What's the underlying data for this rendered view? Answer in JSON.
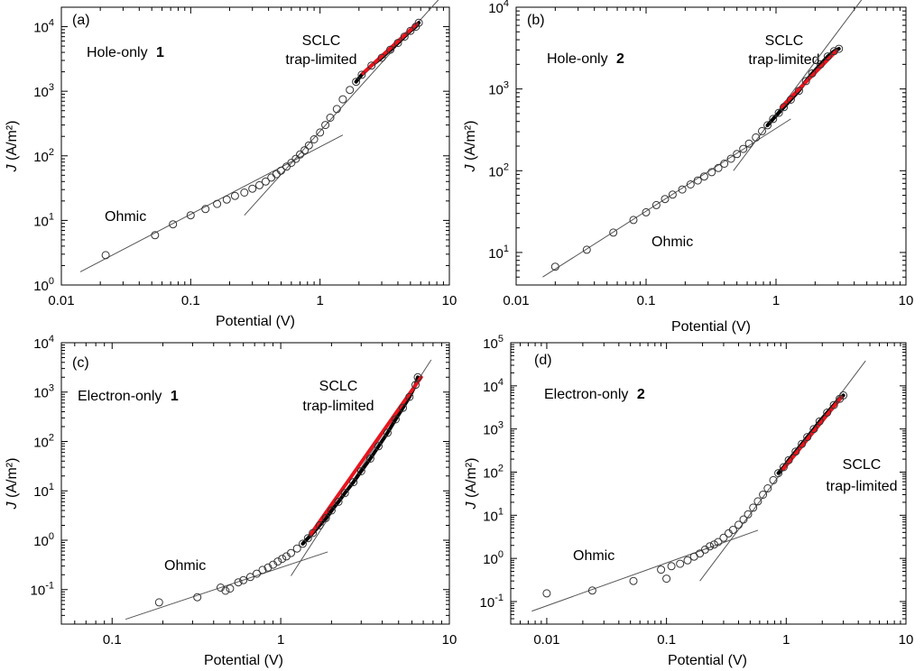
{
  "chart_data": [
    {
      "panel": "(a)",
      "type": "scatter",
      "xlabel_var": "",
      "xlabel": "Potential (V)",
      "ylabel_var": "J",
      "ylabel": " (A/m²)",
      "xscale": "log",
      "yscale": "log",
      "xlim": [
        0.01,
        10
      ],
      "ylim": [
        1,
        20000
      ],
      "xticks": [
        {
          "v": 0.01,
          "t": "0.01"
        },
        {
          "v": 0.1,
          "t": "0.1"
        },
        {
          "v": 1,
          "t": "1"
        },
        {
          "v": 10,
          "t": "10"
        }
      ],
      "yticks": [
        {
          "v": 1,
          "b": "10",
          "e": "0"
        },
        {
          "v": 10,
          "b": "10",
          "e": "1"
        },
        {
          "v": 100,
          "b": "10",
          "e": "2"
        },
        {
          "v": 1000,
          "b": "10",
          "e": "3"
        },
        {
          "v": 10000,
          "b": "10",
          "e": "4"
        }
      ],
      "sample_prefix": "Hole-only ",
      "sample_id": "1",
      "region_label_1": "SCLC",
      "region_label_2": "trap-limited",
      "ohmic_label": "Ohmic",
      "points": [
        [
          0.022,
          2.9
        ],
        [
          0.053,
          5.9
        ],
        [
          0.073,
          8.7
        ],
        [
          0.1,
          12
        ],
        [
          0.13,
          15
        ],
        [
          0.16,
          18
        ],
        [
          0.19,
          21
        ],
        [
          0.22,
          24
        ],
        [
          0.26,
          27
        ],
        [
          0.3,
          31
        ],
        [
          0.34,
          35
        ],
        [
          0.38,
          40
        ],
        [
          0.42,
          46
        ],
        [
          0.46,
          52
        ],
        [
          0.5,
          59
        ],
        [
          0.55,
          68
        ],
        [
          0.6,
          78
        ],
        [
          0.65,
          90
        ],
        [
          0.7,
          105
        ],
        [
          0.76,
          122
        ],
        [
          0.82,
          145
        ],
        [
          0.9,
          180
        ],
        [
          1.0,
          230
        ],
        [
          1.1,
          300
        ],
        [
          1.2,
          390
        ],
        [
          1.35,
          530
        ],
        [
          1.5,
          750
        ],
        [
          1.7,
          1050
        ],
        [
          1.9,
          1400
        ],
        [
          2.1,
          1800
        ],
        [
          2.5,
          2500
        ],
        [
          3.0,
          3300
        ],
        [
          3.5,
          4400
        ],
        [
          4.0,
          5600
        ],
        [
          4.5,
          7000
        ],
        [
          5.0,
          8600
        ],
        [
          5.5,
          10000
        ],
        [
          5.8,
          11500
        ]
      ],
      "ohmic_fit": [
        [
          0.014,
          1.6
        ],
        [
          1.5,
          210
        ]
      ],
      "sclc_fit": [
        [
          0.26,
          12
        ],
        [
          8.5,
          28000
        ]
      ],
      "red_fit": [
        [
          2.15,
          1900
        ],
        [
          5.6,
          11000
        ]
      ],
      "colors": {
        "markers": "#333333",
        "fit_lines": "#555555",
        "dense_fit": "#000000",
        "red_fit": "#e8141d"
      }
    },
    {
      "panel": "(b)",
      "type": "scatter",
      "xlabel_var": "",
      "xlabel": "Potential (V)",
      "ylabel_var": "J",
      "ylabel": " (A/m²)",
      "xscale": "log",
      "yscale": "log",
      "xlim": [
        0.01,
        10
      ],
      "ylim": [
        4,
        10000
      ],
      "xticks": [
        {
          "v": 0.01,
          "t": "0.01"
        },
        {
          "v": 0.1,
          "t": "0.1"
        },
        {
          "v": 1,
          "t": "1"
        },
        {
          "v": 10,
          "t": "10"
        }
      ],
      "yticks": [
        {
          "v": 10,
          "b": "10",
          "e": "1"
        },
        {
          "v": 100,
          "b": "10",
          "e": "2"
        },
        {
          "v": 1000,
          "b": "10",
          "e": "3"
        },
        {
          "v": 10000,
          "b": "10",
          "e": "4"
        }
      ],
      "sample_prefix": "Hole-only ",
      "sample_id": "2",
      "region_label_1": "SCLC",
      "region_label_2": "trap-limited",
      "ohmic_label": "Ohmic",
      "points": [
        [
          0.02,
          6.7
        ],
        [
          0.035,
          10.8
        ],
        [
          0.056,
          17.5
        ],
        [
          0.08,
          25
        ],
        [
          0.1,
          31
        ],
        [
          0.12,
          38
        ],
        [
          0.14,
          45
        ],
        [
          0.16,
          51
        ],
        [
          0.19,
          59
        ],
        [
          0.22,
          68
        ],
        [
          0.25,
          76
        ],
        [
          0.28,
          85
        ],
        [
          0.32,
          96
        ],
        [
          0.36,
          108
        ],
        [
          0.4,
          122
        ],
        [
          0.45,
          140
        ],
        [
          0.5,
          160
        ],
        [
          0.56,
          185
        ],
        [
          0.62,
          215
        ],
        [
          0.7,
          255
        ],
        [
          0.78,
          305
        ],
        [
          0.86,
          360
        ],
        [
          0.95,
          430
        ],
        [
          1.05,
          510
        ],
        [
          1.15,
          600
        ],
        [
          1.3,
          740
        ],
        [
          1.5,
          950
        ],
        [
          1.7,
          1250
        ],
        [
          1.9,
          1550
        ],
        [
          2.2,
          2000
        ],
        [
          2.5,
          2500
        ],
        [
          2.8,
          2900
        ],
        [
          3.05,
          3100
        ]
      ],
      "ohmic_fit": [
        [
          0.016,
          5
        ],
        [
          1.3,
          430
        ]
      ],
      "sclc_fit": [
        [
          0.47,
          100
        ],
        [
          5.0,
          15000
        ]
      ],
      "red_fit": [
        [
          1.1,
          600
        ],
        [
          2.9,
          2900
        ]
      ],
      "colors": {
        "markers": "#333333",
        "fit_lines": "#555555",
        "dense_fit": "#000000",
        "red_fit": "#e8141d"
      }
    },
    {
      "panel": "(c)",
      "type": "scatter",
      "xlabel_var": "",
      "xlabel": "Potential (V)",
      "ylabel_var": "J",
      "ylabel": " (A/m²)",
      "xscale": "log",
      "yscale": "log",
      "xlim": [
        0.05,
        10
      ],
      "ylim": [
        0.02,
        10000
      ],
      "xticks": [
        {
          "v": 0.1,
          "t": "0.1"
        },
        {
          "v": 1,
          "t": "1"
        },
        {
          "v": 10,
          "t": "10"
        }
      ],
      "yticks": [
        {
          "v": 0.1,
          "b": "10",
          "e": "-1"
        },
        {
          "v": 1,
          "b": "10",
          "e": "0"
        },
        {
          "v": 10,
          "b": "10",
          "e": "1"
        },
        {
          "v": 100,
          "b": "10",
          "e": "2"
        },
        {
          "v": 1000,
          "b": "10",
          "e": "3"
        },
        {
          "v": 10000,
          "b": "10",
          "e": "4"
        }
      ],
      "sample_prefix": "Electron-only ",
      "sample_id": "1",
      "region_label_1": "SCLC",
      "region_label_2": "trap-limited",
      "ohmic_label": "Ohmic",
      "points": [
        [
          0.19,
          0.055
        ],
        [
          0.32,
          0.07
        ],
        [
          0.44,
          0.11
        ],
        [
          0.47,
          0.095
        ],
        [
          0.5,
          0.105
        ],
        [
          0.56,
          0.14
        ],
        [
          0.6,
          0.155
        ],
        [
          0.66,
          0.18
        ],
        [
          0.72,
          0.21
        ],
        [
          0.78,
          0.25
        ],
        [
          0.84,
          0.28
        ],
        [
          0.9,
          0.32
        ],
        [
          0.96,
          0.37
        ],
        [
          1.02,
          0.42
        ],
        [
          1.08,
          0.47
        ],
        [
          1.15,
          0.55
        ],
        [
          1.25,
          0.68
        ],
        [
          1.35,
          0.85
        ],
        [
          1.45,
          1.1
        ],
        [
          1.55,
          1.4
        ],
        [
          1.7,
          2.0
        ],
        [
          1.85,
          2.8
        ],
        [
          2.0,
          4.0
        ],
        [
          2.2,
          6.0
        ],
        [
          2.4,
          9.0
        ],
        [
          2.7,
          15
        ],
        [
          3.0,
          25
        ],
        [
          3.4,
          45
        ],
        [
          3.8,
          80
        ],
        [
          4.3,
          150
        ],
        [
          4.8,
          280
        ],
        [
          5.3,
          480
        ],
        [
          5.8,
          800
        ],
        [
          6.3,
          1400
        ],
        [
          6.5,
          2000
        ]
      ],
      "ohmic_fit": [
        [
          0.12,
          0.025
        ],
        [
          1.9,
          0.58
        ]
      ],
      "sclc_fit": [
        [
          1.15,
          0.19
        ],
        [
          7.8,
          4500
        ]
      ],
      "red_fit": [
        [
          1.5,
          1.3
        ],
        [
          6.8,
          2000
        ]
      ],
      "colors": {
        "markers": "#333333",
        "fit_lines": "#555555",
        "dense_fit": "#000000",
        "red_fit": "#e8141d"
      }
    },
    {
      "panel": "(d)",
      "type": "scatter",
      "xlabel_var": "",
      "xlabel": "Potential (V)",
      "ylabel_var": "J",
      "ylabel": " (A/m²)",
      "xscale": "log",
      "yscale": "log",
      "xlim": [
        0.005,
        10
      ],
      "ylim": [
        0.03,
        100000
      ],
      "xticks": [
        {
          "v": 0.01,
          "t": "0.01"
        },
        {
          "v": 0.1,
          "t": "0.1"
        },
        {
          "v": 1,
          "t": "1"
        },
        {
          "v": 10,
          "t": "10"
        }
      ],
      "yticks": [
        {
          "v": 0.1,
          "b": "10",
          "e": "-1"
        },
        {
          "v": 1,
          "b": "10",
          "e": "0"
        },
        {
          "v": 10,
          "b": "10",
          "e": "1"
        },
        {
          "v": 100,
          "b": "10",
          "e": "2"
        },
        {
          "v": 1000,
          "b": "10",
          "e": "3"
        },
        {
          "v": 10000,
          "b": "10",
          "e": "4"
        },
        {
          "v": 100000,
          "b": "10",
          "e": "5"
        }
      ],
      "sample_prefix": "Electron-only ",
      "sample_id": "2",
      "region_label_1": "SCLC",
      "region_label_2": "trap-limited",
      "ohmic_label": "Ohmic",
      "points": [
        [
          0.01,
          0.155
        ],
        [
          0.024,
          0.18
        ],
        [
          0.053,
          0.3
        ],
        [
          0.09,
          0.55
        ],
        [
          0.1,
          0.34
        ],
        [
          0.11,
          0.66
        ],
        [
          0.13,
          0.75
        ],
        [
          0.15,
          0.9
        ],
        [
          0.17,
          1.1
        ],
        [
          0.19,
          1.3
        ],
        [
          0.21,
          1.6
        ],
        [
          0.23,
          1.9
        ],
        [
          0.25,
          2.1
        ],
        [
          0.27,
          2.4
        ],
        [
          0.3,
          3.0
        ],
        [
          0.33,
          3.8
        ],
        [
          0.36,
          4.6
        ],
        [
          0.4,
          6.0
        ],
        [
          0.44,
          8.0
        ],
        [
          0.48,
          10.5
        ],
        [
          0.53,
          15
        ],
        [
          0.58,
          21
        ],
        [
          0.64,
          30
        ],
        [
          0.7,
          42
        ],
        [
          0.78,
          65
        ],
        [
          0.86,
          95
        ],
        [
          0.95,
          130
        ],
        [
          1.05,
          190
        ],
        [
          1.2,
          300
        ],
        [
          1.35,
          450
        ],
        [
          1.5,
          650
        ],
        [
          1.7,
          1000
        ],
        [
          1.9,
          1500
        ],
        [
          2.2,
          2400
        ],
        [
          2.5,
          3600
        ],
        [
          2.8,
          5000
        ],
        [
          3.0,
          6000
        ]
      ],
      "ohmic_fit": [
        [
          0.0075,
          0.06
        ],
        [
          0.58,
          4.5
        ]
      ],
      "sclc_fit": [
        [
          0.19,
          0.3
        ],
        [
          4.6,
          38000
        ]
      ],
      "red_fit": [
        [
          0.95,
          120
        ],
        [
          2.9,
          5500
        ]
      ],
      "colors": {
        "markers": "#333333",
        "fit_lines": "#555555",
        "dense_fit": "#000000",
        "red_fit": "#e8141d"
      }
    }
  ]
}
